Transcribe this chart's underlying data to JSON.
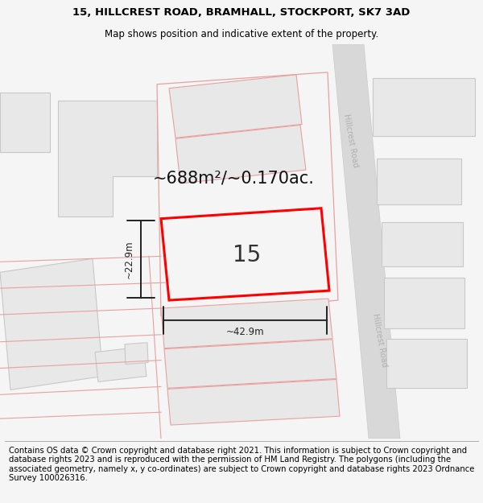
{
  "title_line1": "15, HILLCREST ROAD, BRAMHALL, STOCKPORT, SK7 3AD",
  "title_line2": "Map shows position and indicative extent of the property.",
  "footer_text": "Contains OS data © Crown copyright and database right 2021. This information is subject to Crown copyright and database rights 2023 and is reproduced with the permission of HM Land Registry. The polygons (including the associated geometry, namely x, y co-ordinates) are subject to Crown copyright and database rights 2023 Ordnance Survey 100026316.",
  "area_label": "~688m²/~0.170ac.",
  "number_label": "15",
  "width_label": "~42.9m",
  "height_label": "~22.9m",
  "hillcrest_road_label": "Hillcrest Road",
  "bg_color": "#f5f5f5",
  "map_bg": "#ffffff",
  "road_fill": "#d8d8d8",
  "building_fill": "#e8e8e8",
  "building_edge_gray": "#c8c8c8",
  "building_edge_pink": "#e8a0a0",
  "prop_fill": "#f5f5f5",
  "prop_edge": "#ff0000",
  "dim_color": "#222222",
  "road_label_color": "#b0b0b0",
  "area_label_color": "#111111",
  "footer_sep_color": "#aaaaaa",
  "title_fontsize": 9.5,
  "subtitle_fontsize": 8.5,
  "footer_fontsize": 7.2,
  "area_fontsize": 15,
  "num_fontsize": 20,
  "dim_fontsize": 8.5,
  "road_label_fontsize": 7.0
}
